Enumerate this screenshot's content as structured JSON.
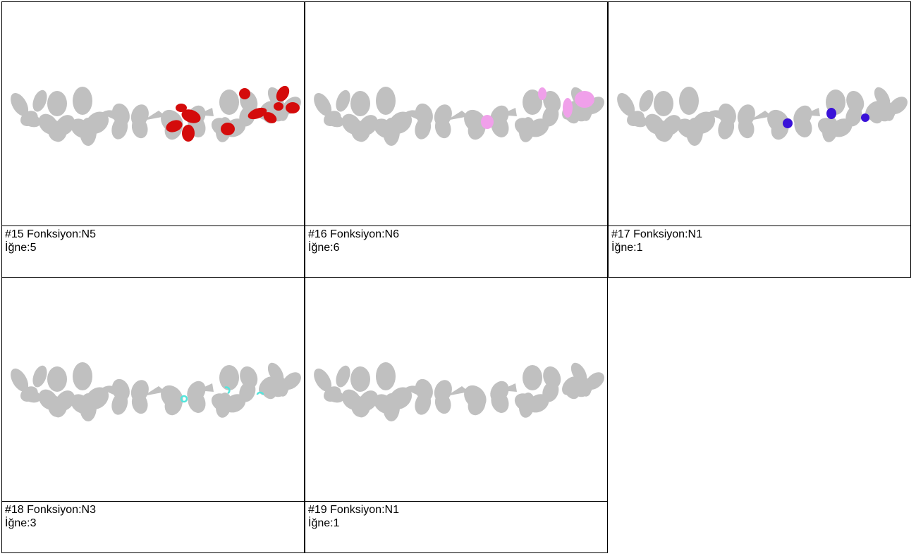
{
  "sheet": {
    "steps": [
      {
        "title": "#15 Fonksiyon:N5",
        "needle": "İğne:5",
        "color": "#d40b0b",
        "marks": "n5"
      },
      {
        "title": "#16 Fonksiyon:N6",
        "needle": "İğne:6",
        "color": "#f0a0ea",
        "marks": "n6"
      },
      {
        "title": "#17 Fonksiyon:N1",
        "needle": "İğne:1",
        "color": "#3a12d8",
        "marks": "n1"
      },
      {
        "title": "#18 Fonksiyon:N3",
        "needle": "İğne:3",
        "color": "#52e6dc",
        "marks": "n3"
      },
      {
        "title": "#19 Fonksiyon:N1",
        "needle": "İğne:1",
        "color": "#3a12d8",
        "marks": "none"
      }
    ],
    "base_color": "#c0c0c0"
  }
}
